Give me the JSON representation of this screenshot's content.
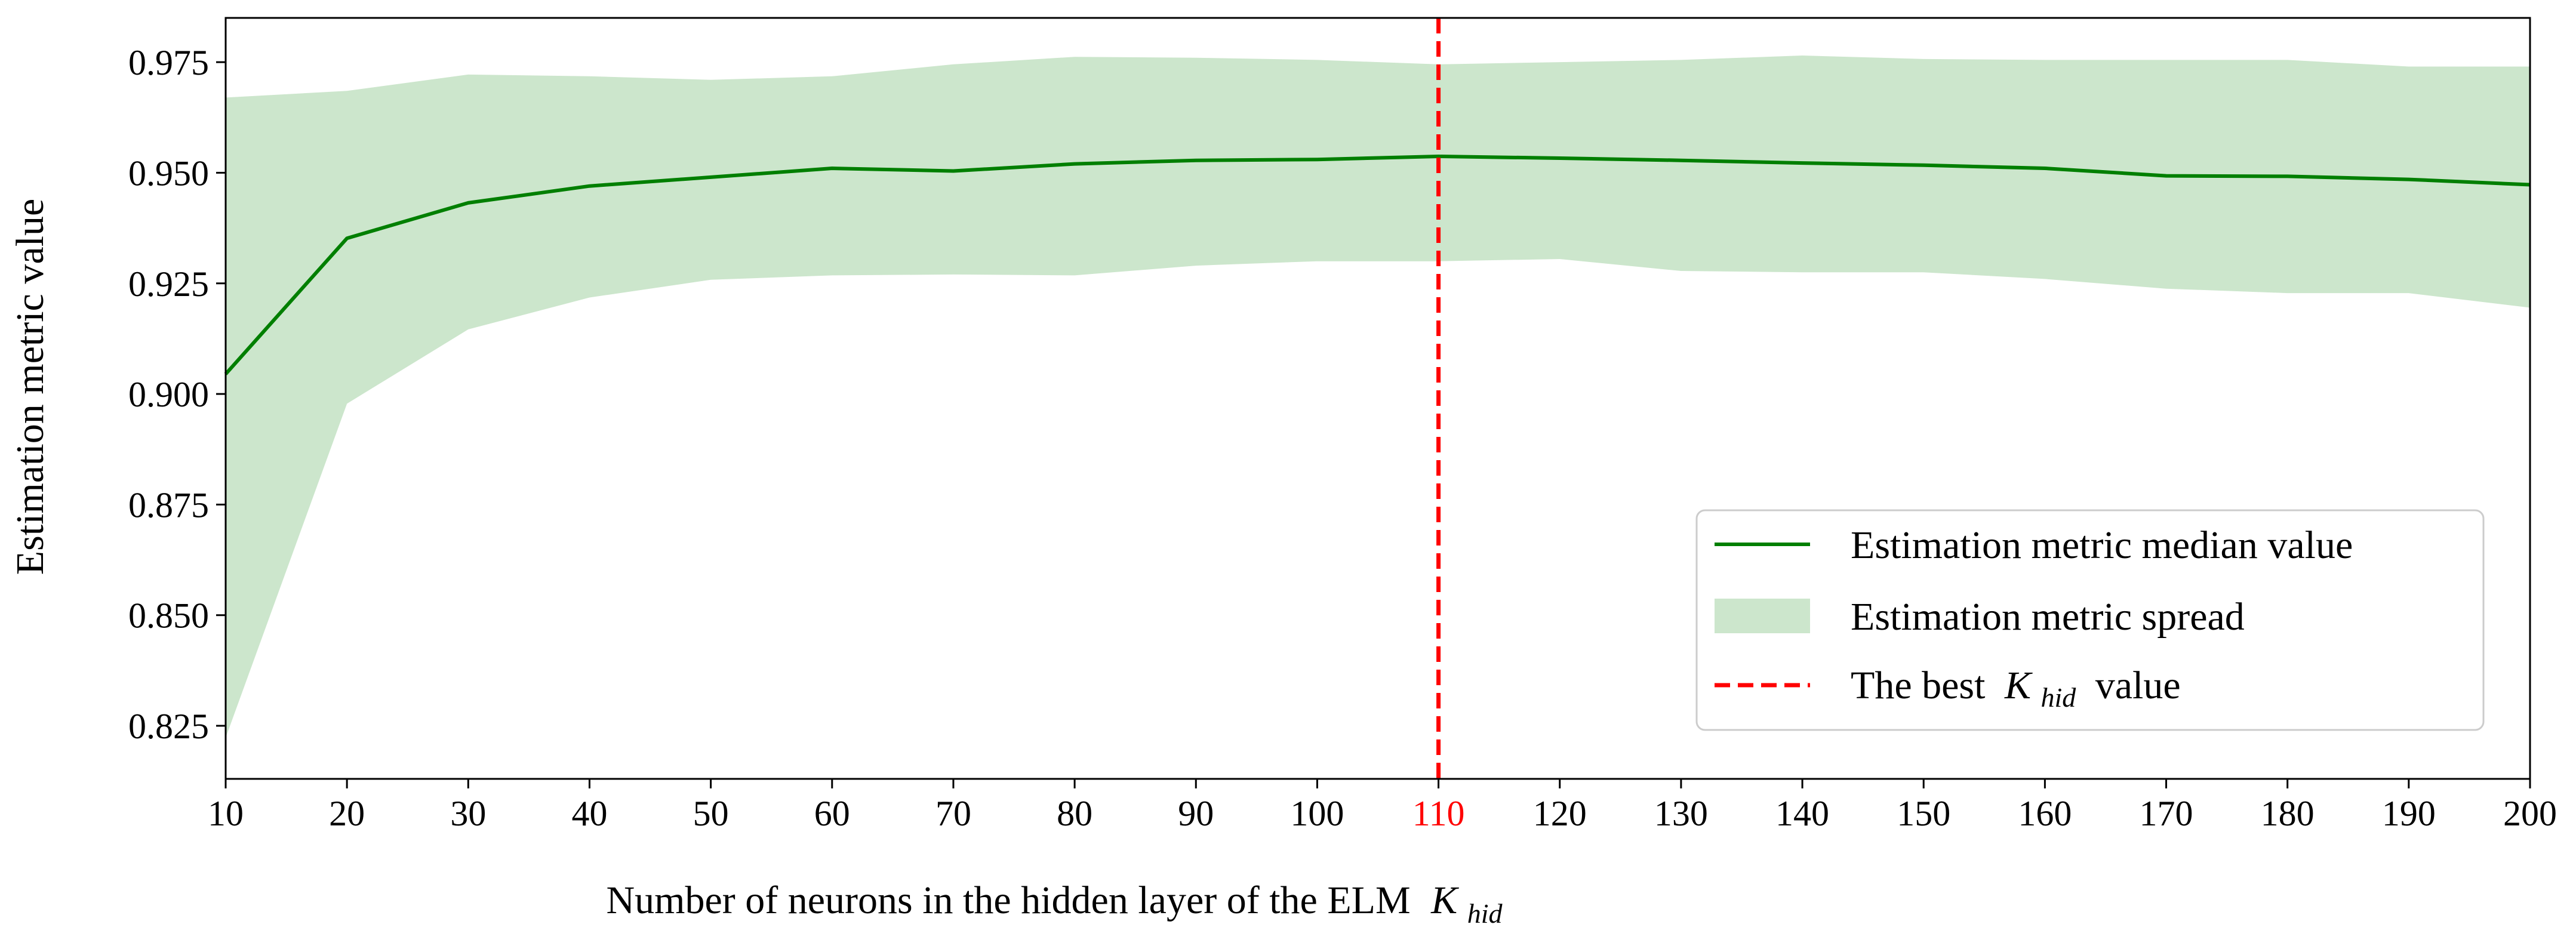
{
  "chart_data": {
    "type": "line",
    "title": "",
    "xlabel": "Number of neurons in the hidden layer of the ELM",
    "xlabel_symbol": {
      "base": "K",
      "sub": "hid"
    },
    "ylabel": "Estimation metric value",
    "x": [
      10,
      20,
      30,
      40,
      50,
      60,
      70,
      80,
      90,
      100,
      110,
      120,
      130,
      140,
      150,
      160,
      170,
      180,
      190,
      200
    ],
    "xlim": [
      10,
      200
    ],
    "ylim": [
      0.813,
      0.985
    ],
    "x_ticks": [
      "10",
      "20",
      "30",
      "40",
      "50",
      "60",
      "70",
      "80",
      "90",
      "100",
      "110",
      "120",
      "130",
      "140",
      "150",
      "160",
      "170",
      "180",
      "190",
      "200"
    ],
    "highlight_tick": "110",
    "y_ticks": [
      "0.825",
      "0.850",
      "0.875",
      "0.900",
      "0.925",
      "0.950",
      "0.975"
    ],
    "y_tick_values": [
      0.825,
      0.85,
      0.875,
      0.9,
      0.925,
      0.95,
      0.975
    ],
    "series": [
      {
        "name": "Estimation metric median value",
        "kind": "line",
        "color": "#007f00",
        "values": [
          0.9045,
          0.9352,
          0.9432,
          0.947,
          0.949,
          0.951,
          0.9504,
          0.952,
          0.9528,
          0.953,
          0.9537,
          0.9533,
          0.9528,
          0.9522,
          0.9517,
          0.951,
          0.9493,
          0.9492,
          0.9485,
          0.9473
        ]
      },
      {
        "name": "Estimation metric spread",
        "kind": "band",
        "color": "#cce6cc",
        "upper": [
          0.967,
          0.9685,
          0.9722,
          0.9718,
          0.971,
          0.9718,
          0.9745,
          0.9762,
          0.976,
          0.9755,
          0.9745,
          0.975,
          0.9755,
          0.9765,
          0.9757,
          0.9755,
          0.9755,
          0.9755,
          0.974,
          0.974
        ],
        "lower": [
          0.8223,
          0.8978,
          0.9146,
          0.9218,
          0.9258,
          0.9268,
          0.927,
          0.9268,
          0.929,
          0.93,
          0.93,
          0.9305,
          0.9278,
          0.9275,
          0.9275,
          0.926,
          0.9238,
          0.9228,
          0.9228,
          0.9195
        ]
      },
      {
        "name": "The best",
        "name_symbol": {
          "base": "K",
          "sub": "hid"
        },
        "name_suffix": "value",
        "kind": "vline",
        "color": "#ff0000",
        "x": 110
      }
    ],
    "legend": {
      "position": "lower-right"
    }
  }
}
